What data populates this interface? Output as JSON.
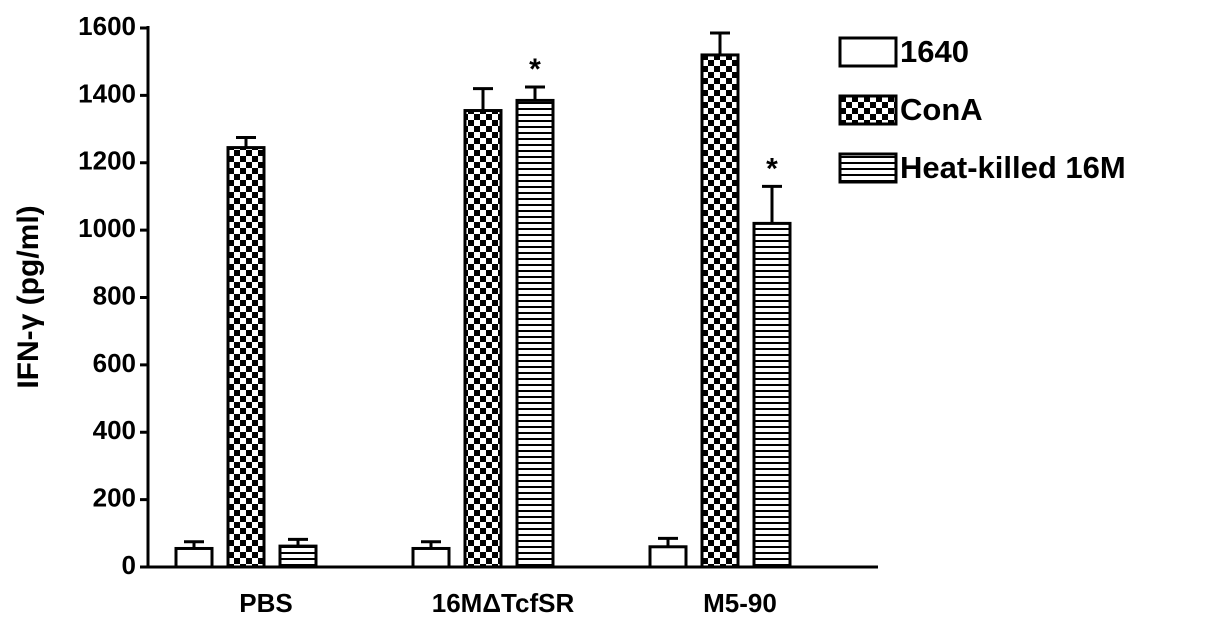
{
  "chart_data": {
    "type": "bar",
    "y_label": "IFN-γ (pg/ml)",
    "categories": [
      "PBS",
      "16MΔTcfSR",
      "M5-90"
    ],
    "series": [
      {
        "name": "1640",
        "color": "#000000",
        "pattern": "none",
        "values": [
          55,
          55,
          60
        ],
        "errors": [
          20,
          20,
          25
        ]
      },
      {
        "name": "ConA",
        "color": "#000000",
        "pattern": "checker",
        "values": [
          1245,
          1355,
          1520
        ],
        "errors": [
          30,
          65,
          65
        ]
      },
      {
        "name": "Heat-killed 16M",
        "color": "#000000",
        "pattern": "hstripe",
        "values": [
          62,
          1385,
          1020
        ],
        "errors": [
          20,
          40,
          110
        ]
      }
    ],
    "annotations": [
      {
        "text": "*",
        "category": 1,
        "series": 2
      },
      {
        "text": "*",
        "category": 2,
        "series": 2
      }
    ],
    "ylim": [
      0,
      1600
    ],
    "yticks": [
      0,
      200,
      400,
      600,
      800,
      1000,
      1200,
      1400,
      1600
    ],
    "legend": "upper right"
  }
}
